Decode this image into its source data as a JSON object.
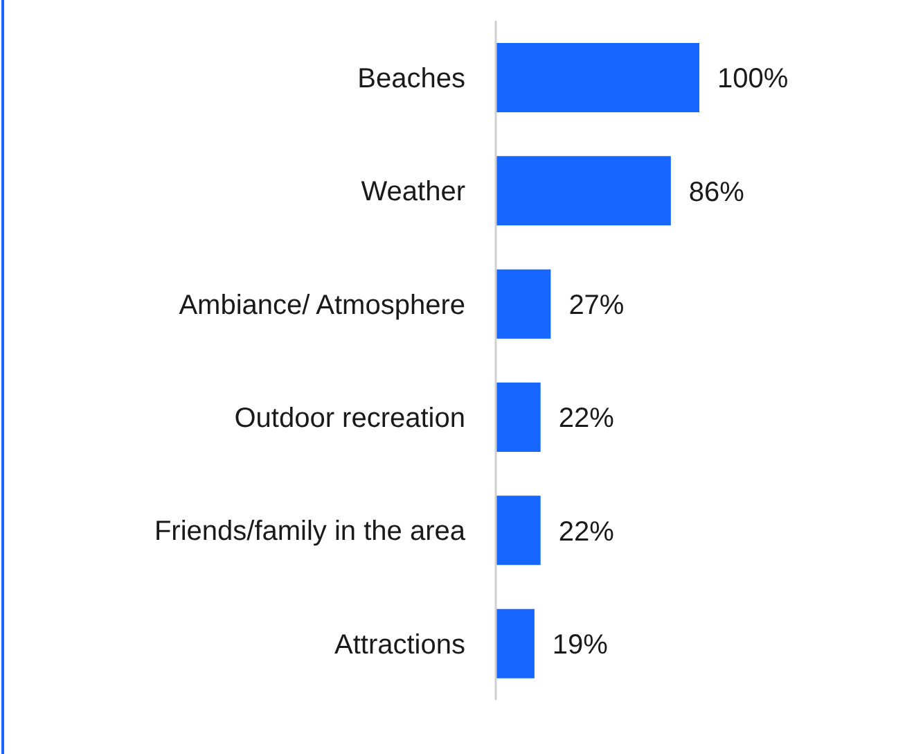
{
  "chart_data": {
    "type": "bar",
    "orientation": "horizontal",
    "categories": [
      "Beaches",
      "Weather",
      "Ambiance/ Atmosphere",
      "Outdoor recreation",
      "Friends/family in the area",
      "Attractions"
    ],
    "values": [
      100,
      86,
      27,
      22,
      22,
      19
    ],
    "value_labels": [
      "100%",
      "86%",
      "27%",
      "22%",
      "22%",
      "19%"
    ],
    "color": "#1766ff"
  }
}
